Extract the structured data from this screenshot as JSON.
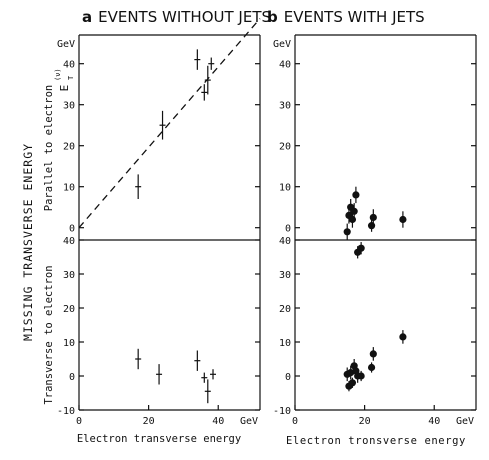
{
  "titles": {
    "a_letter": "a",
    "a_text": "EVENTS WITHOUT JETS",
    "b_letter": "b",
    "b_text": "EVENTS WITH JETS"
  },
  "ylabels": {
    "outer": "MISSING TRANSVERSE ENERGY",
    "top_panel": "Parallel to electron",
    "bottom_panel": "Transverse to electron",
    "et_symbol": "E",
    "et_sub": "T",
    "et_sup": "(ν)"
  },
  "xlabels": {
    "a": "Electron transverse energy",
    "b": "Electron tronsverse energy"
  },
  "unit": "GeV",
  "chart_data": [
    {
      "type": "scatter",
      "panel": "a-top",
      "xlim": [
        0,
        52
      ],
      "ylim": [
        -3,
        47
      ],
      "yticks": [
        "0",
        "10",
        "20",
        "30",
        "40"
      ],
      "yunit": "GeV",
      "reference_line": {
        "style": "dashed",
        "from": [
          0,
          0
        ],
        "to": [
          52,
          51
        ]
      },
      "marker": "cross",
      "points": [
        {
          "x": 17,
          "y": 10,
          "yerr": 3
        },
        {
          "x": 24,
          "y": 25,
          "yerr": 3.5
        },
        {
          "x": 34,
          "y": 41,
          "yerr": 2.5
        },
        {
          "x": 36,
          "y": 33,
          "yerr": 2
        },
        {
          "x": 37,
          "y": 36,
          "yerr": 3.5
        },
        {
          "x": 38,
          "y": 40,
          "yerr": 1.5
        }
      ]
    },
    {
      "type": "scatter",
      "panel": "a-bottom",
      "xlim": [
        0,
        52
      ],
      "ylim": [
        -10,
        40
      ],
      "yticks": [
        "-10",
        "0",
        "10",
        "20",
        "30",
        "40"
      ],
      "xticks": [
        "0",
        "20",
        "40"
      ],
      "xunit": "GeV",
      "marker": "cross",
      "points": [
        {
          "x": 17,
          "y": 5,
          "yerr": 3
        },
        {
          "x": 23,
          "y": 0.5,
          "yerr": 3
        },
        {
          "x": 34,
          "y": 4.5,
          "yerr": 3
        },
        {
          "x": 36,
          "y": -0.5,
          "yerr": 1.5
        },
        {
          "x": 37,
          "y": -4.5,
          "yerr": 3.5
        },
        {
          "x": 38.5,
          "y": 0.5,
          "yerr": 1.5
        }
      ]
    },
    {
      "type": "scatter",
      "panel": "b-top",
      "xlim": [
        0,
        52
      ],
      "ylim": [
        -3,
        47
      ],
      "yticks": [
        "0",
        "10",
        "20",
        "30",
        "40"
      ],
      "yunit": "GeV",
      "marker": "dot",
      "points": [
        {
          "x": 15,
          "y": -1,
          "yerr": 2
        },
        {
          "x": 15.5,
          "y": 3,
          "yerr": 2
        },
        {
          "x": 16,
          "y": 5,
          "yerr": 2
        },
        {
          "x": 16.5,
          "y": 2,
          "yerr": 2
        },
        {
          "x": 17,
          "y": 4,
          "yerr": 2
        },
        {
          "x": 17.5,
          "y": 8,
          "yerr": 2
        },
        {
          "x": 18,
          "y": -6,
          "yerr": 1.5
        },
        {
          "x": 19,
          "y": -5,
          "yerr": 1.5
        },
        {
          "x": 22,
          "y": 0.5,
          "yerr": 1.5
        },
        {
          "x": 22.5,
          "y": 2.5,
          "yerr": 2
        },
        {
          "x": 31,
          "y": 2,
          "yerr": 2
        }
      ]
    },
    {
      "type": "scatter",
      "panel": "b-bottom",
      "xlim": [
        0,
        52
      ],
      "ylim": [
        -10,
        40
      ],
      "yticks": [
        "-10",
        "0",
        "10",
        "20",
        "30",
        "40"
      ],
      "xticks": [
        "0",
        "20",
        "40"
      ],
      "xunit": "GeV",
      "marker": "dot",
      "points": [
        {
          "x": 15,
          "y": 0.5,
          "yerr": 2
        },
        {
          "x": 15.5,
          "y": -3,
          "yerr": 1.5
        },
        {
          "x": 16,
          "y": 1,
          "yerr": 2
        },
        {
          "x": 16.5,
          "y": -2,
          "yerr": 1.5
        },
        {
          "x": 17,
          "y": 3,
          "yerr": 2
        },
        {
          "x": 17.5,
          "y": 1.5,
          "yerr": 2
        },
        {
          "x": 18,
          "y": 0,
          "yerr": 2
        },
        {
          "x": 19,
          "y": 0,
          "yerr": 1.5
        },
        {
          "x": 22,
          "y": 2.5,
          "yerr": 1.5
        },
        {
          "x": 22.5,
          "y": 6.5,
          "yerr": 2
        },
        {
          "x": 31,
          "y": 11.5,
          "yerr": 2
        }
      ]
    }
  ]
}
